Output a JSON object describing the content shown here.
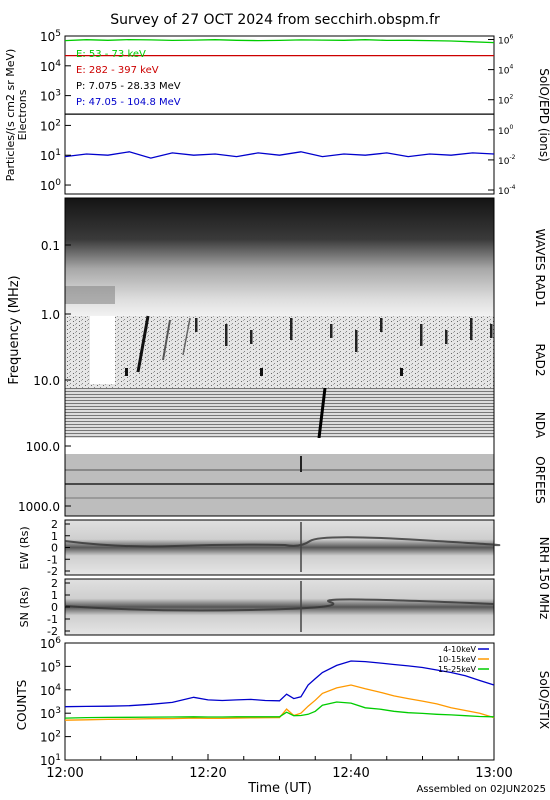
{
  "title": "Survey of 27 OCT 2024 from secchirh.obspm.fr",
  "footer": "Assembled on 02JUN2025",
  "xaxis": {
    "label": "Time (UT)",
    "range": [
      "12:00",
      "13:00"
    ],
    "ticks": [
      "12:00",
      "12:20",
      "12:40",
      "13:00"
    ]
  },
  "chart_data": [
    {
      "type": "line",
      "panel": "SolO/EPD",
      "right_label": "SolO/EPD (ions)",
      "ylabel_left": "Particles/(s cm2 sr MeV)",
      "ylabel_left2": "Electrons",
      "yscale": "log",
      "ylim": [
        0.5,
        100000
      ],
      "yticks_left": [
        "10^0",
        "10^1",
        "10^2",
        "10^3",
        "10^4",
        "10^5"
      ],
      "yticks_right": [
        "10^-4",
        "10^-2",
        "10^0",
        "10^2",
        "10^4",
        "10^6"
      ],
      "series": [
        {
          "name": "E: 53 - 73 keV",
          "color": "#00cc00",
          "values": [
            70000,
            75000,
            72000,
            76000,
            74000,
            71000,
            73000,
            75000,
            72000,
            70000,
            71000,
            74000,
            73000,
            72000,
            75000,
            71000,
            72000,
            70000,
            68000,
            64000,
            60000
          ]
        },
        {
          "name": "E: 282 - 397 keV",
          "color": "#cc0000",
          "values": [
            22000,
            22000,
            22000,
            22000,
            22000,
            22000,
            22000,
            22000,
            22000,
            22000,
            22000,
            22000,
            22000,
            22000,
            22000,
            22000,
            22000,
            22000,
            22000,
            22000,
            22000
          ]
        },
        {
          "name": "P: 7.075 - 28.33 MeV",
          "color": "#000000",
          "values": [
            240,
            240,
            240,
            240,
            240,
            240,
            240,
            240,
            240,
            240,
            240,
            240,
            240,
            240,
            240,
            240,
            240,
            240,
            240,
            240,
            240
          ]
        },
        {
          "name": "P: 47.05 - 104.8 MeV",
          "color": "#0000cc",
          "values": [
            9,
            11,
            10,
            13,
            8,
            12,
            10,
            11,
            9,
            12,
            10,
            13,
            9,
            11,
            10,
            12,
            9,
            11,
            10,
            12,
            11
          ]
        }
      ]
    },
    {
      "type": "heatmap",
      "panel": "WAVES / RAD2 / NDA / ORFEES",
      "ylabel": "Frequency (MHz)",
      "yscale": "log",
      "yticks": [
        "0.1",
        "1.0",
        "10.0",
        "100.0",
        "1000.0"
      ],
      "right_labels": [
        "WAVES RAD1",
        "RAD2",
        "NDA",
        "ORFEES"
      ]
    },
    {
      "type": "heatmap",
      "panel": "NRH 150 MHz EW",
      "ylabel": "EW (Rs)",
      "right_label": "NRH 150 MHz",
      "yticks": [
        "2",
        "1",
        "0",
        "-1",
        "-2"
      ]
    },
    {
      "type": "heatmap",
      "panel": "NRH 150 MHz SN",
      "ylabel": "SN (Rs)",
      "yticks": [
        "2",
        "1",
        "0",
        "-1",
        "-2"
      ]
    },
    {
      "type": "line",
      "panel": "SolO/STIX",
      "right_label": "SolO/STIX",
      "ylabel": "COUNTS",
      "yscale": "log",
      "ylim": [
        10,
        1000000
      ],
      "yticks": [
        "10^1",
        "10^2",
        "10^3",
        "10^4",
        "10^5",
        "10^6"
      ],
      "x_minutes": [
        0,
        3,
        6,
        9,
        12,
        15,
        18,
        20,
        22,
        24,
        26,
        28,
        30,
        31,
        32,
        33,
        34,
        35,
        36,
        38,
        40,
        42,
        44,
        46,
        48,
        50,
        52,
        54,
        56,
        58,
        60
      ],
      "series": [
        {
          "name": "4-10keV",
          "color": "#0000cc",
          "values": [
            1900,
            1950,
            2000,
            2100,
            2400,
            2900,
            4800,
            3700,
            3500,
            3700,
            3900,
            3500,
            3400,
            6500,
            4200,
            5000,
            16000,
            30000,
            55000,
            110000,
            170000,
            160000,
            140000,
            120000,
            105000,
            90000,
            70000,
            55000,
            40000,
            25000,
            16000
          ]
        },
        {
          "name": "10-15keV",
          "color": "#ff9900",
          "values": [
            500,
            520,
            550,
            560,
            580,
            590,
            620,
            600,
            600,
            620,
            630,
            640,
            650,
            1500,
            800,
            1000,
            2000,
            3600,
            7000,
            12000,
            16000,
            11000,
            8000,
            5500,
            4200,
            3300,
            2500,
            1700,
            1300,
            1000,
            650
          ]
        },
        {
          "name": "15-25keV",
          "color": "#00cc00",
          "values": [
            620,
            650,
            660,
            670,
            680,
            690,
            700,
            690,
            690,
            700,
            700,
            700,
            700,
            1100,
            780,
            800,
            900,
            1200,
            2200,
            3000,
            2700,
            1700,
            1500,
            1200,
            1050,
            980,
            900,
            850,
            780,
            720,
            700
          ]
        }
      ]
    }
  ]
}
